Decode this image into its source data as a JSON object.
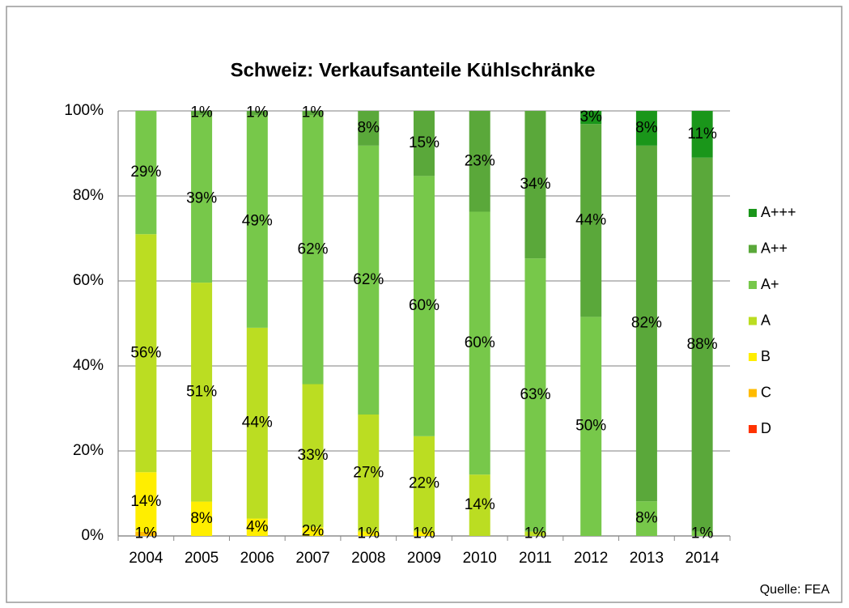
{
  "chart_data": {
    "type": "bar",
    "stacking": "percent",
    "title": "Schweiz: Verkaufsanteile Kühlschränke",
    "source": "Quelle: FEA",
    "categories": [
      "2004",
      "2005",
      "2006",
      "2007",
      "2008",
      "2009",
      "2010",
      "2011",
      "2012",
      "2013",
      "2014"
    ],
    "ylim": [
      0,
      100
    ],
    "yticks": [
      {
        "value": 0,
        "label": "0%"
      },
      {
        "value": 20,
        "label": "20%"
      },
      {
        "value": 40,
        "label": "40%"
      },
      {
        "value": 60,
        "label": "60%"
      },
      {
        "value": 80,
        "label": "80%"
      },
      {
        "value": 100,
        "label": "100%"
      }
    ],
    "grid": true,
    "legend": "right",
    "series": [
      {
        "name": "D",
        "color": "#ff3300",
        "values": [
          null,
          null,
          null,
          null,
          null,
          null,
          null,
          null,
          null,
          null,
          null
        ],
        "value_labels": [
          null,
          null,
          null,
          null,
          null,
          null,
          null,
          null,
          null,
          null,
          null
        ]
      },
      {
        "name": "C",
        "color": "#ffbb00",
        "values": [
          1,
          null,
          null,
          null,
          null,
          null,
          null,
          null,
          null,
          null,
          null
        ],
        "value_labels": [
          "1%",
          null,
          null,
          null,
          null,
          null,
          null,
          null,
          null,
          null,
          null
        ]
      },
      {
        "name": "B",
        "color": "#ffee00",
        "values": [
          14,
          8,
          4,
          2,
          1,
          1,
          null,
          null,
          null,
          null,
          null
        ],
        "value_labels": [
          "14%",
          "8%",
          "4%",
          "2%",
          "1%",
          "1%",
          null,
          null,
          null,
          null,
          null
        ]
      },
      {
        "name": "A",
        "color": "#bbdd22",
        "values": [
          56,
          51,
          44,
          33,
          27,
          22,
          14,
          1,
          null,
          null,
          null
        ],
        "value_labels": [
          "56%",
          "51%",
          "44%",
          "33%",
          "27%",
          "22%",
          "14%",
          "1%",
          null,
          null,
          null
        ]
      },
      {
        "name": "A+",
        "color": "#77c84a",
        "values": [
          29,
          39,
          49,
          62,
          62,
          60,
          60,
          63,
          50,
          8,
          1
        ],
        "value_labels": [
          "29%",
          "39%",
          "49%",
          "62%",
          "62%",
          "60%",
          "60%",
          "63%",
          "50%",
          "8%",
          "1%"
        ]
      },
      {
        "name": "A++",
        "color": "#5aa83a",
        "values": [
          null,
          1,
          1,
          1,
          8,
          15,
          23,
          34,
          44,
          82,
          88
        ],
        "value_labels": [
          null,
          "1%",
          "1%",
          "1%",
          "8%",
          "15%",
          "23%",
          "34%",
          "44%",
          "82%",
          "88%"
        ]
      },
      {
        "name": "A+++",
        "color": "#1a961a",
        "values": [
          null,
          null,
          null,
          null,
          null,
          null,
          null,
          null,
          3,
          8,
          11
        ],
        "value_labels": [
          null,
          null,
          null,
          null,
          null,
          null,
          null,
          null,
          "3%",
          "8%",
          "11%"
        ]
      }
    ]
  }
}
